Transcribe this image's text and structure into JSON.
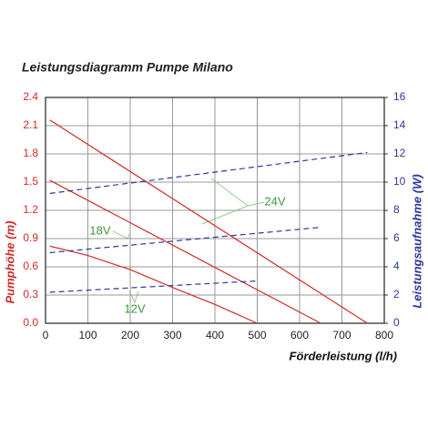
{
  "chart_data": {
    "type": "line",
    "title": "Leistungsdiagramm Pumpe Milano",
    "x_label": "Förderleistung (l/h)",
    "y_label": "Pumphöhe (m)",
    "y2_label": "Leistungsaufnahme (W)",
    "xlim": [
      0,
      800
    ],
    "xticks": [
      0,
      100,
      200,
      300,
      400,
      500,
      600,
      700,
      800
    ],
    "ylim": [
      0,
      2.4
    ],
    "yticks": [
      {
        "value": 0,
        "label": "0.0"
      },
      0.3,
      0.6,
      0.9,
      1.2,
      1.5,
      1.8,
      2.1,
      2.4
    ],
    "y2lim": [
      0,
      16
    ],
    "y2ticks": [
      0,
      2,
      4,
      6,
      8,
      10,
      12,
      14,
      16
    ],
    "grid": true,
    "annotations": [
      "24V",
      "18V",
      "12V"
    ],
    "annotation_color": "#3a9a3a",
    "series": [
      {
        "color": "#d42a2a",
        "style": "solid",
        "x": [
          10,
          760
        ],
        "values": [
          2.16,
          0
        ]
      },
      {
        "color": "#d42a2a",
        "style": "solid",
        "x": [
          10,
          650
        ],
        "values": [
          1.52,
          0
        ]
      },
      {
        "color": "#d42a2a",
        "style": "solid",
        "x": [
          10,
          100,
          200,
          300,
          400,
          500
        ],
        "values": [
          0.82,
          0.72,
          0.57,
          0.38,
          0.2,
          0
        ]
      },
      {
        "color": "#2a3a9a",
        "style": "dashed",
        "axis": "y2",
        "x": [
          10,
          760
        ],
        "values": [
          9.2,
          12.1
        ]
      },
      {
        "color": "#2a3a9a",
        "style": "dashed",
        "axis": "y2",
        "x": [
          10,
          650
        ],
        "values": [
          5.0,
          6.8
        ]
      },
      {
        "color": "#2a3a9a",
        "style": "dashed",
        "axis": "y2",
        "x": [
          10,
          500
        ],
        "values": [
          2.2,
          3.0
        ]
      }
    ]
  }
}
